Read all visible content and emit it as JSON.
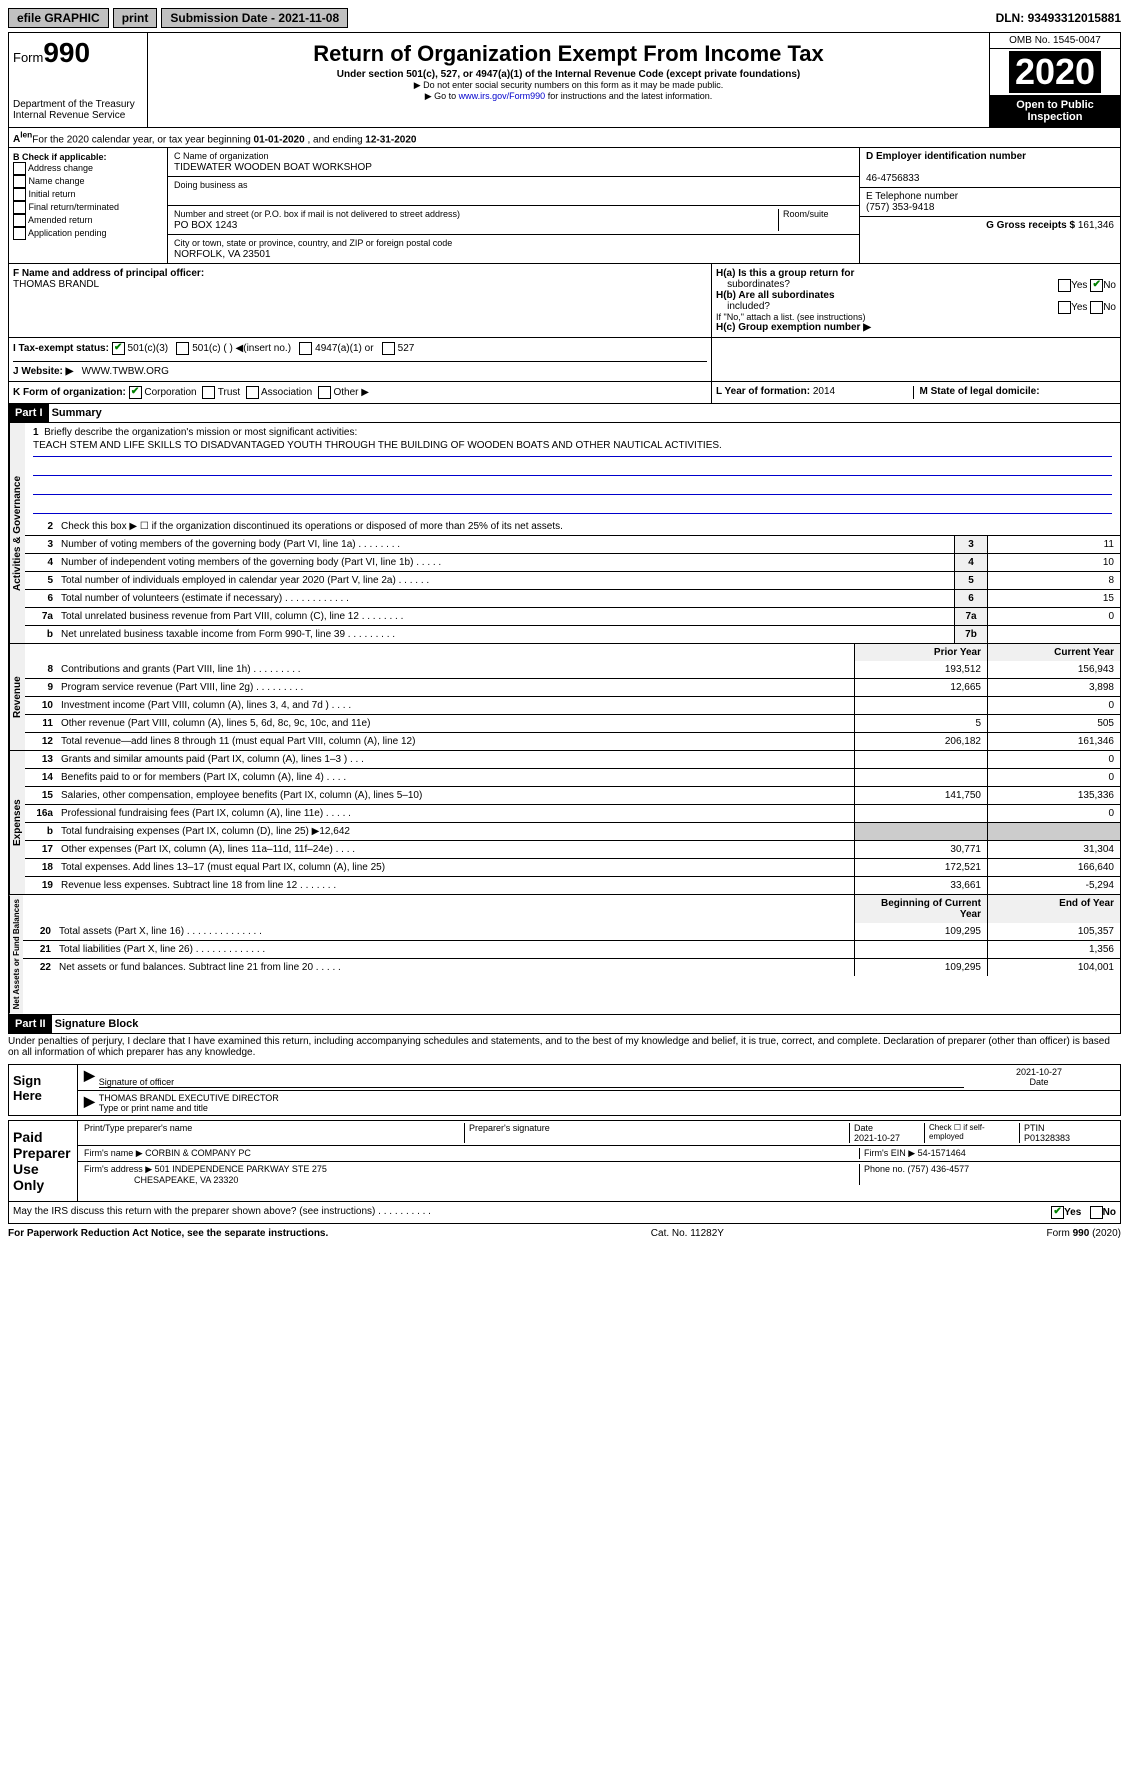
{
  "topbar": {
    "efile": "efile GRAPHIC",
    "print": "print",
    "subdate_label": "Submission Date - ",
    "subdate": "2021-11-08",
    "dln_label": "DLN: ",
    "dln": "93493312015881"
  },
  "header": {
    "form_prefix": "Form",
    "form_num": "990",
    "title": "Return of Organization Exempt From Income Tax",
    "sub": "Under section 501(c), 527, or 4947(a)(1) of the Internal Revenue Code (except private foundations)",
    "note1": "▶ Do not enter social security numbers on this form as it may be made public.",
    "note2_pre": "▶ Go to ",
    "note2_link": "www.irs.gov/Form990",
    "note2_post": " for instructions and the latest information.",
    "dept": "Department of the Treasury",
    "irs": "Internal Revenue Service",
    "omb": "OMB No. 1545-0047",
    "year": "2020",
    "open": "Open to Public",
    "inspection": "Inspection"
  },
  "rowA": {
    "text": "For the 2020 calendar year, or tax year beginning ",
    "begin": "01-01-2020",
    "mid": " , and ending ",
    "end": "12-31-2020"
  },
  "boxB": {
    "title": "B Check if applicable:",
    "items": [
      "Address change",
      "Name change",
      "Initial return",
      "Final return/terminated",
      "Amended return",
      "Application pending"
    ]
  },
  "boxC": {
    "name_label": "C Name of organization",
    "name": "TIDEWATER WOODEN BOAT WORKSHOP",
    "dba_label": "Doing business as",
    "dba": "",
    "addr_label": "Number and street (or P.O. box if mail is not delivered to street address)",
    "room_label": "Room/suite",
    "addr": "PO BOX 1243",
    "city_label": "City or town, state or province, country, and ZIP or foreign postal code",
    "city": "NORFOLK, VA  23501"
  },
  "boxD": {
    "label": "D Employer identification number",
    "ein_label": "",
    "ein": "46-4756833"
  },
  "boxE": {
    "label": "E Telephone number",
    "phone": "(757) 353-9418"
  },
  "boxG": {
    "label": "G Gross receipts $ ",
    "amount": "161,346"
  },
  "boxF": {
    "label": "F  Name and address of principal officer:",
    "name": "THOMAS BRANDL"
  },
  "boxH": {
    "a_label": "H(a)  Is this a group return for",
    "a_sub": "subordinates?",
    "a_yes": "Yes",
    "a_no": "No",
    "b_label": "H(b)  Are all subordinates",
    "b_sub": "included?",
    "b_yes": "Yes",
    "b_no": "No",
    "b_note": "If \"No,\" attach a list. (see instructions)",
    "c_label": "H(c)  Group exemption number ▶"
  },
  "rowI": {
    "label": "I   Tax-exempt status:",
    "c3": "501(c)(3)",
    "c": "501(c) (  ) ◀(insert no.)",
    "a1": "4947(a)(1) or",
    "s527": "527"
  },
  "rowJ": {
    "label": "J   Website: ▶",
    "url": "WWW.TWBW.ORG"
  },
  "rowK": {
    "label": "K Form of organization:",
    "corp": "Corporation",
    "trust": "Trust",
    "assoc": "Association",
    "other": "Other ▶"
  },
  "rowL": {
    "label": "L Year of formation: ",
    "year": "2014"
  },
  "rowM": {
    "label": "M State of legal domicile:",
    "state": ""
  },
  "part1": {
    "title": "Part I",
    "subtitle": "Summary"
  },
  "mission": {
    "num": "1",
    "label": "Briefly describe the organization's mission or most significant activities:",
    "text": "TEACH STEM AND LIFE SKILLS TO DISADVANTAGED YOUTH THROUGH THE BUILDING OF WOODEN BOATS AND OTHER NAUTICAL ACTIVITIES."
  },
  "gov_lines": [
    {
      "n": "2",
      "d": "Check this box ▶ ☐  if the organization discontinued its operations or disposed of more than 25% of its net assets."
    },
    {
      "n": "3",
      "d": "Number of voting members of the governing body (Part VI, line 1a)  .    .    .    .    .    .    .    .",
      "b": "3",
      "v": "11"
    },
    {
      "n": "4",
      "d": "Number of independent voting members of the governing body (Part VI, line 1b)  .    .    .    .    .",
      "b": "4",
      "v": "10"
    },
    {
      "n": "5",
      "d": "Total number of individuals employed in calendar year 2020 (Part V, line 2a)  .    .    .    .    .    .",
      "b": "5",
      "v": "8"
    },
    {
      "n": "6",
      "d": "Total number of volunteers (estimate if necessary)  .    .    .    .    .    .    .    .    .    .    .    .",
      "b": "6",
      "v": "15"
    },
    {
      "n": "7a",
      "d": "Total unrelated business revenue from Part VIII, column (C), line 12  .    .    .    .    .    .    .    .",
      "b": "7a",
      "v": "0"
    },
    {
      "n": "b",
      "d": "Net unrelated business taxable income from Form 990-T, line 39  .    .    .    .    .    .    .    .    .",
      "b": "7b",
      "v": ""
    }
  ],
  "rev_header": {
    "prior": "Prior Year",
    "current": "Current Year"
  },
  "rev_lines": [
    {
      "n": "8",
      "d": "Contributions and grants (Part VIII, line 1h)  .    .    .    .    .    .    .    .    .",
      "p": "193,512",
      "c": "156,943"
    },
    {
      "n": "9",
      "d": "Program service revenue (Part VIII, line 2g)  .    .    .    .    .    .    .    .    .",
      "p": "12,665",
      "c": "3,898"
    },
    {
      "n": "10",
      "d": "Investment income (Part VIII, column (A), lines 3, 4, and 7d )  .    .    .    .",
      "p": "",
      "c": "0"
    },
    {
      "n": "11",
      "d": "Other revenue (Part VIII, column (A), lines 5, 6d, 8c, 9c, 10c, and 11e)",
      "p": "5",
      "c": "505"
    },
    {
      "n": "12",
      "d": "Total revenue—add lines 8 through 11 (must equal Part VIII, column (A), line 12)",
      "p": "206,182",
      "c": "161,346"
    }
  ],
  "exp_lines": [
    {
      "n": "13",
      "d": "Grants and similar amounts paid (Part IX, column (A), lines 1–3 )  .    .    .",
      "p": "",
      "c": "0"
    },
    {
      "n": "14",
      "d": "Benefits paid to or for members (Part IX, column (A), line 4)  .    .    .    .",
      "p": "",
      "c": "0"
    },
    {
      "n": "15",
      "d": "Salaries, other compensation, employee benefits (Part IX, column (A), lines 5–10)",
      "p": "141,750",
      "c": "135,336"
    },
    {
      "n": "16a",
      "d": "Professional fundraising fees (Part IX, column (A), line 11e)  .    .    .    .    .",
      "p": "",
      "c": "0"
    },
    {
      "n": "b",
      "d": "Total fundraising expenses (Part IX, column (D), line 25) ▶12,642",
      "p": null,
      "c": null
    },
    {
      "n": "17",
      "d": "Other expenses (Part IX, column (A), lines 11a–11d, 11f–24e)  .    .    .    .",
      "p": "30,771",
      "c": "31,304"
    },
    {
      "n": "18",
      "d": "Total expenses. Add lines 13–17 (must equal Part IX, column (A), line 25)",
      "p": "172,521",
      "c": "166,640"
    },
    {
      "n": "19",
      "d": "Revenue less expenses. Subtract line 18 from line 12  .    .    .    .    .    .    .",
      "p": "33,661",
      "c": "-5,294"
    }
  ],
  "na_header": {
    "begin": "Beginning of Current Year",
    "end": "End of Year"
  },
  "na_lines": [
    {
      "n": "20",
      "d": "Total assets (Part X, line 16)  .    .    .    .    .    .    .    .    .    .    .    .    .    .",
      "p": "109,295",
      "c": "105,357"
    },
    {
      "n": "21",
      "d": "Total liabilities (Part X, line 26)  .    .    .    .    .    .    .    .    .    .    .    .    .",
      "p": "",
      "c": "1,356"
    },
    {
      "n": "22",
      "d": "Net assets or fund balances. Subtract line 21 from line 20  .    .    .    .    .",
      "p": "109,295",
      "c": "104,001"
    }
  ],
  "part2": {
    "title": "Part II",
    "subtitle": "Signature Block"
  },
  "perjury": "Under penalties of perjury, I declare that I have examined this return, including accompanying schedules and statements, and to the best of my knowledge and belief, it is true, correct, and complete. Declaration of preparer (other than officer) is based on all information of which preparer has any knowledge.",
  "sign": {
    "label": "Sign Here",
    "sig_officer": "Signature of officer",
    "date": "2021-10-27",
    "date_label": "Date",
    "name": "THOMAS BRANDL  EXECUTIVE DIRECTOR",
    "name_label": "Type or print name and title"
  },
  "paid": {
    "label": "Paid Preparer Use Only",
    "h_name": "Print/Type preparer's name",
    "h_sig": "Preparer's signature",
    "h_date": "Date",
    "date": "2021-10-27",
    "h_check": "Check ☐ if self-employed",
    "h_ptin": "PTIN",
    "ptin": "P01328383",
    "firm_label": "Firm's name   ▶",
    "firm": "CORBIN & COMPANY PC",
    "ein_label": "Firm's EIN ▶",
    "ein": "54-1571464",
    "addr_label": "Firm's address ▶",
    "addr1": "501 INDEPENDENCE PARKWAY STE 275",
    "addr2": "CHESAPEAKE, VA  23320",
    "phone_label": "Phone no. ",
    "phone": "(757) 436-4577"
  },
  "discuss": {
    "q": "May the IRS discuss this return with the preparer shown above? (see instructions)  .    .    .    .    .    .    .    .    .    .",
    "yes": "Yes",
    "no": "No"
  },
  "footer": {
    "left": "For Paperwork Reduction Act Notice, see the separate instructions.",
    "mid": "Cat. No. 11282Y",
    "right": "Form 990 (2020)"
  },
  "vlabels": {
    "gov": "Activities & Governance",
    "rev": "Revenue",
    "exp": "Expenses",
    "na": "Net Assets or Fund Balances"
  }
}
